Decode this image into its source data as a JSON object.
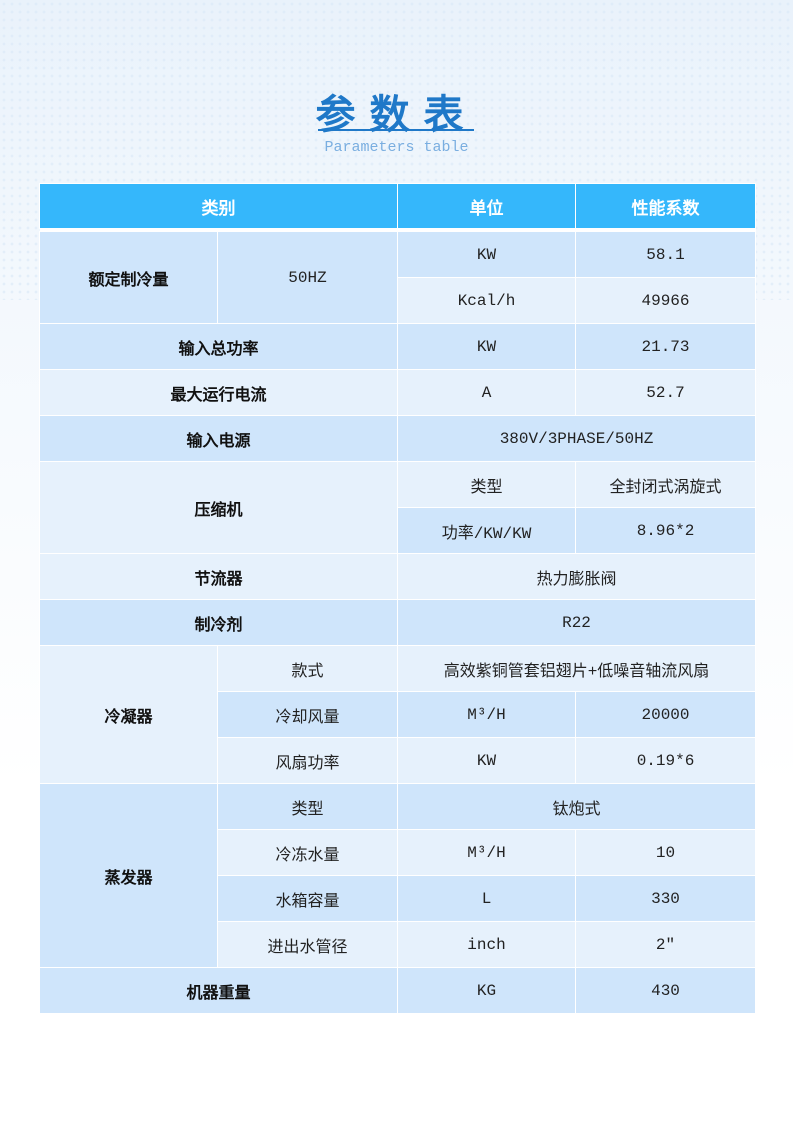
{
  "title": "参数表",
  "subtitle": "Parameters table",
  "header": [
    "类别",
    "单位",
    "性能系数"
  ],
  "rows": {
    "cooling": {
      "label": "额定制冷量",
      "freq": "50HZ",
      "kw_unit": "KW",
      "kw_value": "58.1",
      "kcal_unit": "Kcal/h",
      "kcal_value": "49966"
    },
    "input_power": {
      "label": "输入总功率",
      "unit": "KW",
      "value": "21.73"
    },
    "max_current": {
      "label": "最大运行电流",
      "unit": "A",
      "value": "52.7"
    },
    "power_supply": {
      "label": "输入电源",
      "value": "380V/3PHASE/50HZ"
    },
    "compressor": {
      "label": "压缩机",
      "type_label": "类型",
      "type_value": "全封闭式涡旋式",
      "power_label": "功率/KW/KW",
      "power_value": "8.96*2"
    },
    "throttle": {
      "label": "节流器",
      "value": "热力膨胀阀"
    },
    "refrigerant": {
      "label": "制冷剂",
      "value": "R22"
    },
    "condenser": {
      "label": "冷凝器",
      "style_label": "款式",
      "style_value": "高效紫铜管套铝翅片+低噪音轴流风扇",
      "airflow_label": "冷却风量",
      "airflow_unit": "M³/H",
      "airflow_value": "20000",
      "fan_label": "风扇功率",
      "fan_unit": "KW",
      "fan_value": "0.19*6"
    },
    "evaporator": {
      "label": "蒸发器",
      "type_label": "类型",
      "type_value": "钛炮式",
      "water_label": "冷冻水量",
      "water_unit": "M³/H",
      "water_value": "10",
      "tank_label": "水箱容量",
      "tank_unit": "L",
      "tank_value": "330",
      "pipe_label": "进出水管径",
      "pipe_unit": "inch",
      "pipe_value": "2″"
    },
    "weight": {
      "label": "机器重量",
      "unit": "KG",
      "value": "430"
    }
  },
  "colors": {
    "header": "#35b7fb",
    "row_dark": "#cfe5fb",
    "row_light": "#e6f1fc",
    "title": "#1f78c8"
  }
}
